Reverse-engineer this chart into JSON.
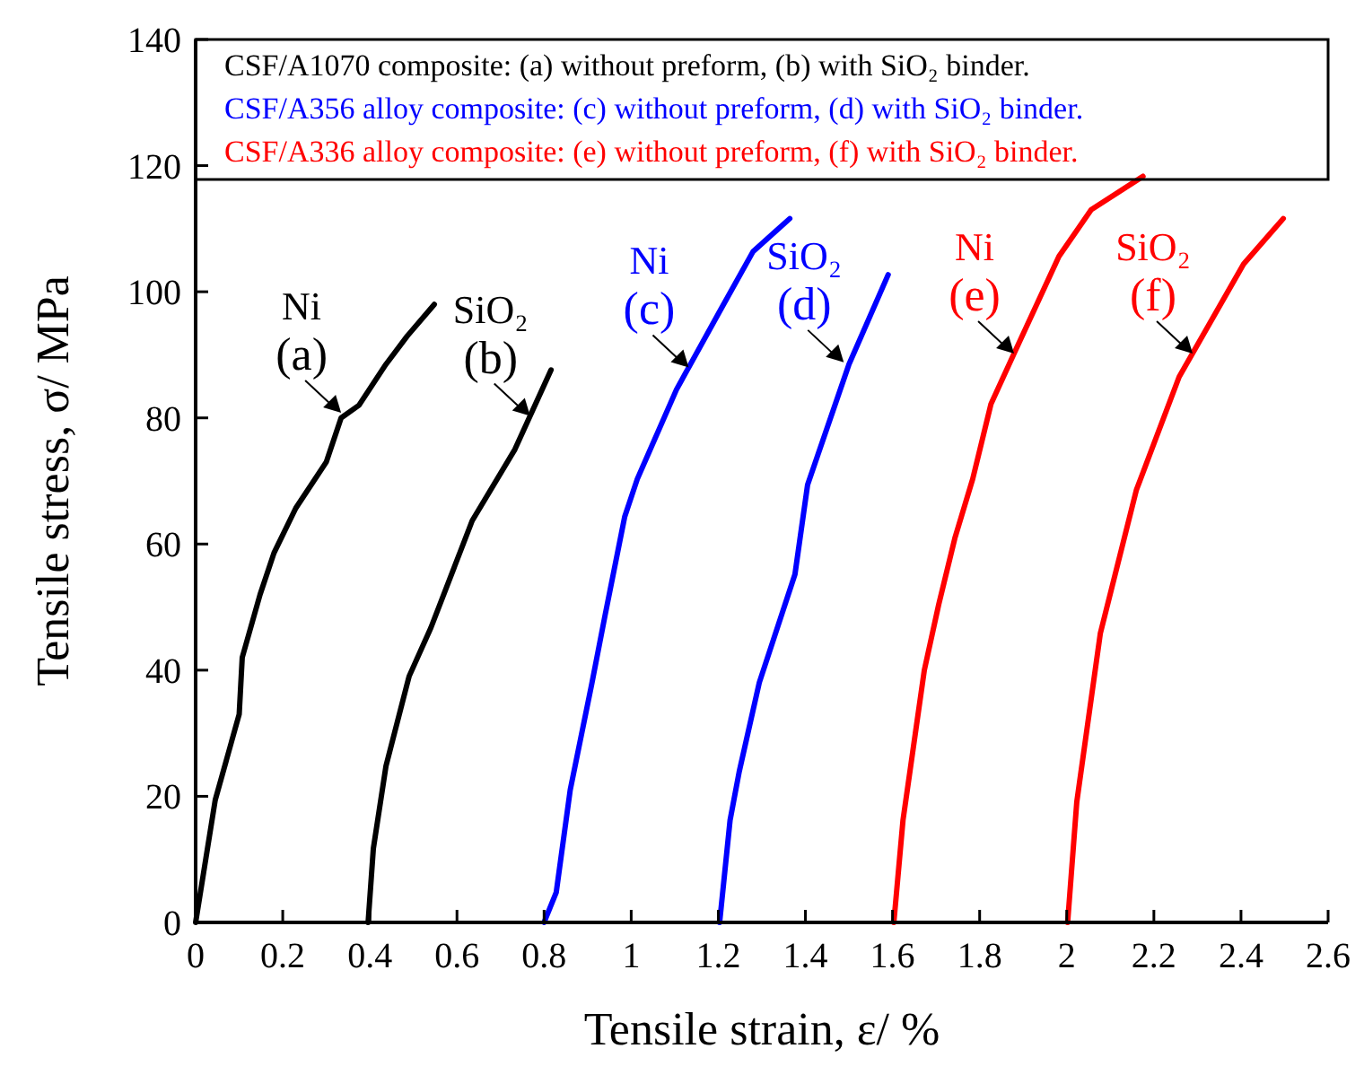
{
  "chart_data": {
    "type": "line",
    "xlabel": "Tensile strain, ε/ %",
    "ylabel": "Tensile stress, σ/ MPa",
    "xlim": [
      0,
      2.6
    ],
    "ylim": [
      0,
      140
    ],
    "xticks": [
      0,
      0.2,
      0.4,
      0.6,
      0.8,
      1,
      1.2,
      1.4,
      1.6,
      1.8,
      2,
      2.2,
      2.4,
      2.6
    ],
    "yticks": [
      0,
      20,
      40,
      60,
      80,
      100,
      120,
      140
    ],
    "grid": false,
    "marker": "none",
    "line_style": "solid",
    "series": [
      {
        "color": "#000000",
        "x": [
          0,
          0.045,
          0.1,
          0.107,
          0.148,
          0.18,
          0.23,
          0.3,
          0.334,
          0.375,
          0.437,
          0.486,
          0.548
        ],
        "values": [
          0,
          19.4,
          33,
          42,
          52,
          58.6,
          65.7,
          73,
          80,
          82,
          88.5,
          93,
          98
        ]
      },
      {
        "color": "#000000",
        "x": [
          0.396,
          0.408,
          0.437,
          0.49,
          0.54,
          0.635,
          0.733,
          0.816
        ],
        "values": [
          0,
          11.7,
          24.8,
          39,
          46.7,
          63.7,
          75,
          87.6
        ]
      },
      {
        "color": "#0000ff",
        "x": [
          0.8,
          0.828,
          0.86,
          0.91,
          0.94,
          0.985,
          1.014,
          1.104,
          1.2,
          1.28,
          1.364
        ],
        "values": [
          0,
          4.8,
          21,
          38,
          48.7,
          64.3,
          70.3,
          84.5,
          96.5,
          106.4,
          111.6
        ]
      },
      {
        "color": "#0000ff",
        "x": [
          1.203,
          1.227,
          1.248,
          1.294,
          1.376,
          1.405,
          1.5,
          1.59
        ],
        "values": [
          0,
          16.2,
          23.9,
          38,
          55.2,
          69.4,
          88.5,
          102.7
        ]
      },
      {
        "color": "#ff0000",
        "x": [
          1.603,
          1.624,
          1.673,
          1.706,
          1.743,
          1.784,
          1.826,
          1.879,
          1.982,
          2.056,
          2.175
        ],
        "values": [
          0,
          16.2,
          40,
          50.4,
          60.9,
          70.3,
          82.2,
          90.2,
          105.6,
          113,
          118.3
        ]
      },
      {
        "color": "#ff0000",
        "x": [
          2.002,
          2.023,
          2.077,
          2.16,
          2.258,
          2.406,
          2.497
        ],
        "values": [
          0,
          19.1,
          45.8,
          68.6,
          86.5,
          104.4,
          111.6
        ]
      }
    ],
    "annotations": [
      {
        "text": "Ni (a)",
        "x": 0.334,
        "y": 80.8
      },
      {
        "text": "SiO₂ (b)",
        "x": 0.768,
        "y": 80.3
      },
      {
        "text": "Ni (c)",
        "x": 1.132,
        "y": 88
      },
      {
        "text": "SiO₂ (d)",
        "x": 1.488,
        "y": 88.8
      },
      {
        "text": "Ni (e)",
        "x": 1.879,
        "y": 90.2
      },
      {
        "text": "SiO₂ (f)",
        "x": 2.289,
        "y": 90.2
      },
      "CSF/A1070 composite: (a) without preform, (b) with SiO₂ binder.",
      "CSF/A356 alloy composite: (c) without preform, (d) with SiO₂ binder.",
      "CSF/A336 alloy composite: (e) without preform, (f) with SiO₂ binder."
    ]
  }
}
